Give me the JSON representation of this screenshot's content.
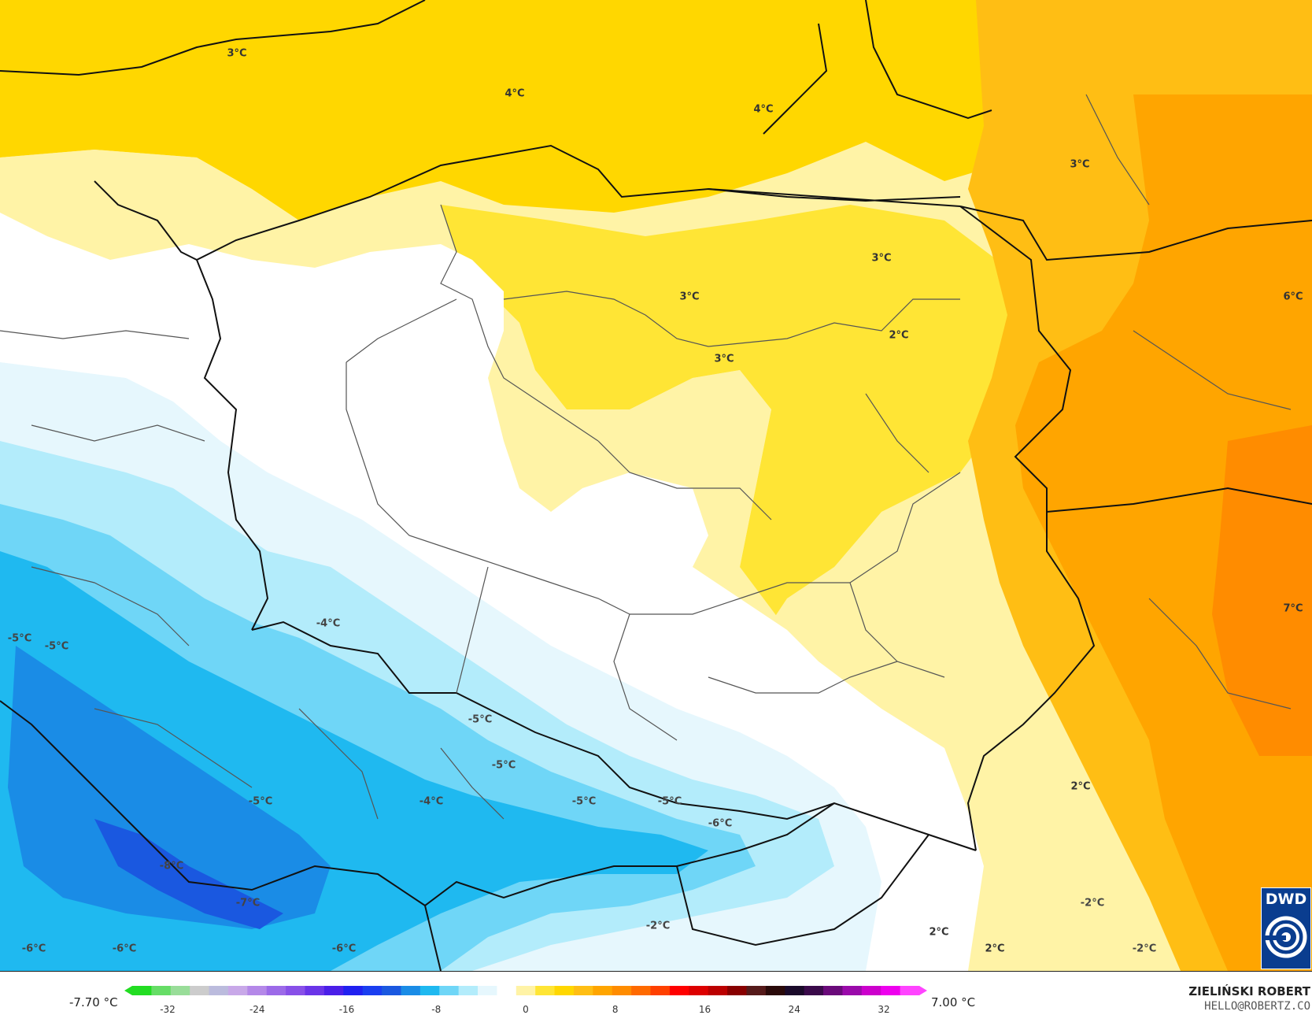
{
  "map": {
    "temperature_labels": [
      "3°C",
      "4°C",
      "4°C",
      "3°C",
      "3°C",
      "3°C",
      "6°C",
      "2°C",
      "3°C",
      "7°C",
      "-5°C",
      "-5°C",
      "-4°C",
      "-5°C",
      "-5°C",
      "-5°C",
      "-4°C",
      "-5°C",
      "-5°C",
      "-6°C",
      "-8°C",
      "-7°C",
      "-6°C",
      "-6°C",
      "-6°C",
      "-2°C",
      "2°C",
      "2°C",
      "2°C",
      "-2°C",
      "-2°C"
    ],
    "colors": {
      "orange_deep": "#ff8c00",
      "orange": "#ffa500",
      "orange_light": "#ffbe14",
      "yellow_dark": "#ffd700",
      "yellow": "#ffe535",
      "yellow_light": "#fff3a6",
      "white": "#ffffff",
      "blue_palest": "#e6f7fd",
      "blue_pale": "#b3ecfb",
      "blue_light": "#6fd6f7",
      "blue": "#1fb9f0",
      "blue_mid": "#1a8ce6",
      "blue_dark": "#1a58e0",
      "border": "#111111",
      "region_border": "#555555"
    }
  },
  "logo": {
    "text": "DWD",
    "icon": "dwd-swirl-icon"
  },
  "legend": {
    "min_value": "-7.70 °C",
    "max_value": "7.00 °C",
    "ticks": [
      "-32",
      "-24",
      "-16",
      "-8",
      "0",
      "8",
      "16",
      "24",
      "32"
    ],
    "palette": [
      "#22dd22",
      "#66dd66",
      "#99dd99",
      "#cccccc",
      "#bbbbdd",
      "#c8a8e8",
      "#b488e8",
      "#9c6ae8",
      "#8850e8",
      "#6a34e8",
      "#4a1ee8",
      "#2020f0",
      "#1a3ef0",
      "#1a58e0",
      "#1a8ce6",
      "#1fb9f0",
      "#6fd6f7",
      "#b3ecfb",
      "#e6f7fd",
      "#ffffff",
      "#fff3a6",
      "#ffe535",
      "#ffd700",
      "#ffbe14",
      "#ffa500",
      "#ff8c00",
      "#ff6a00",
      "#ff4000",
      "#ff0000",
      "#dd0000",
      "#bb0000",
      "#880000",
      "#551a1a",
      "#2a0a0a",
      "#1a0a2a",
      "#3a0a4a",
      "#6a0a7a",
      "#9a0aaa",
      "#cc00cc",
      "#ee00ee",
      "#ff44ff"
    ]
  },
  "credits": {
    "author": "ZIELIŃSKI ROBERT",
    "email": "HELLO@ROBERTZ.CO"
  }
}
